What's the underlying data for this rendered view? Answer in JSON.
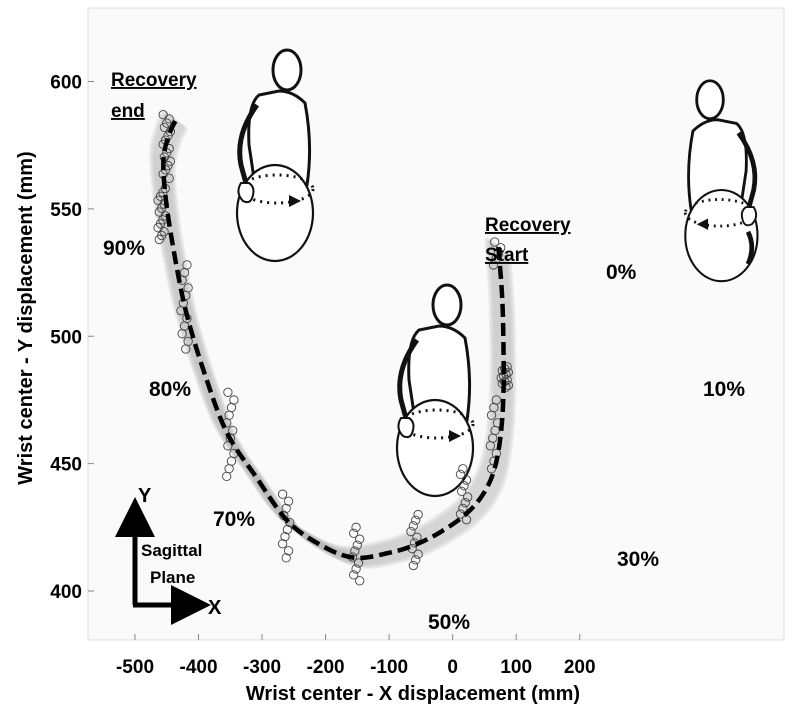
{
  "chart_data": {
    "type": "scatter",
    "title": "",
    "xlabel": "Wrist center - X displacement (mm)",
    "ylabel": "Wrist center - Y displacement (mm)",
    "xlim": [
      -550,
      200
    ],
    "ylim": [
      380,
      625
    ],
    "x_ticks": [
      -500,
      -400,
      -300,
      -200,
      -100,
      0,
      100,
      200
    ],
    "y_ticks": [
      400,
      450,
      500,
      550,
      600
    ],
    "grid": false,
    "mean_path": [
      [
        72,
        535
      ],
      [
        78,
        515
      ],
      [
        80,
        495
      ],
      [
        80,
        478
      ],
      [
        76,
        462
      ],
      [
        66,
        448
      ],
      [
        48,
        438
      ],
      [
        20,
        430
      ],
      [
        -20,
        423
      ],
      [
        -60,
        418
      ],
      [
        -100,
        415
      ],
      [
        -152,
        413
      ],
      [
        -200,
        417
      ],
      [
        -258,
        427
      ],
      [
        -310,
        445
      ],
      [
        -355,
        462
      ],
      [
        -390,
        485
      ],
      [
        -420,
        510
      ],
      [
        -440,
        535
      ],
      [
        -452,
        555
      ],
      [
        -455,
        570
      ],
      [
        -445,
        580
      ],
      [
        -435,
        585
      ]
    ],
    "cycle_markers": [
      {
        "label": "0%",
        "x": 72,
        "y": 533
      },
      {
        "label": "10%",
        "x": 82,
        "y": 484
      },
      {
        "label": "30%",
        "x": 18,
        "y": 437
      },
      {
        "label": "50%",
        "x": -152,
        "y": 413
      },
      {
        "label": "70%",
        "x": -352,
        "y": 460
      },
      {
        "label": "80%",
        "x": -425,
        "y": 508
      },
      {
        "label": "90%",
        "x": -460,
        "y": 545
      }
    ],
    "point_clusters": [
      {
        "x": 70,
        "y_min": 528,
        "y_max": 537,
        "n": 5
      },
      {
        "x": 82,
        "y_min": 480,
        "y_max": 488,
        "n": 12
      },
      {
        "x": 65,
        "y_min": 448,
        "y_max": 475,
        "n": 10
      },
      {
        "x": 18,
        "y_min": 428,
        "y_max": 448,
        "n": 10
      },
      {
        "x": -60,
        "y_min": 410,
        "y_max": 430,
        "n": 10
      },
      {
        "x": -152,
        "y_min": 404,
        "y_max": 425,
        "n": 10
      },
      {
        "x": -262,
        "y_min": 413,
        "y_max": 438,
        "n": 10
      },
      {
        "x": -350,
        "y_min": 445,
        "y_max": 478,
        "n": 12
      },
      {
        "x": -422,
        "y_min": 495,
        "y_max": 528,
        "n": 12
      },
      {
        "x": -458,
        "y_min": 538,
        "y_max": 558,
        "n": 14
      },
      {
        "x": -450,
        "y_min": 562,
        "y_max": 587,
        "n": 16
      }
    ],
    "annotations": {
      "recovery_end": [
        "Recovery",
        "end"
      ],
      "recovery_start": [
        "Recovery",
        "Start"
      ]
    },
    "percent_labels": [
      "0%",
      "10%",
      "30%",
      "50%",
      "70%",
      "80%",
      "90%"
    ],
    "inset": {
      "y_axis": "Y",
      "x_axis": "X",
      "plane": [
        "Sagittal",
        "Plane"
      ]
    }
  }
}
